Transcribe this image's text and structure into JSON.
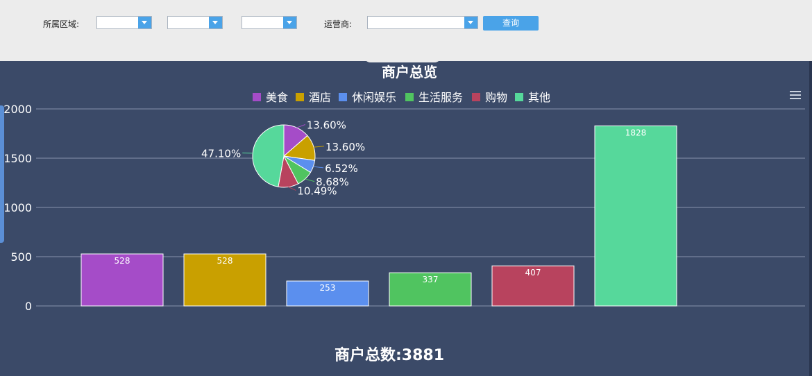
{
  "filters": {
    "region_label": "所属区域:",
    "operator_label": "运营商:",
    "query_button": "查询"
  },
  "chart_data": {
    "type": "bar",
    "title": "商户总览",
    "footer": "商户总数:3881",
    "categories": [
      "美食",
      "酒店",
      "休闲娱乐",
      "生活服务",
      "购物",
      "其他"
    ],
    "values": [
      528,
      528,
      253,
      337,
      407,
      1828
    ],
    "colors": [
      "#a54cc8",
      "#c9a000",
      "#5b8fee",
      "#50c460",
      "#b8435e",
      "#56d89b"
    ],
    "ylim": [
      0,
      2000
    ],
    "yticks": [
      0,
      500,
      1000,
      1500,
      2000
    ],
    "legend": [
      "美食",
      "酒店",
      "休闲娱乐",
      "生活服务",
      "购物",
      "其他"
    ],
    "legend_position": "top-center",
    "grid": true,
    "pie_inset": {
      "type": "pie",
      "labels": [
        "美食",
        "酒店",
        "休闲娱乐",
        "生活服务",
        "购物",
        "其他"
      ],
      "percents": [
        "13.60%",
        "13.60%",
        "6.52%",
        "8.68%",
        "10.49%",
        "47.10%"
      ],
      "values": [
        13.6,
        13.6,
        6.52,
        8.68,
        10.49,
        47.1
      ]
    }
  }
}
